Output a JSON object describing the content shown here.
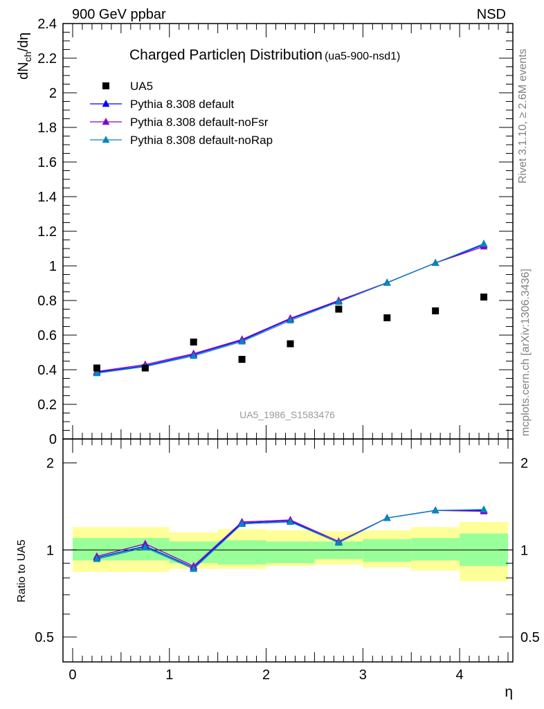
{
  "header": {
    "left": "900 GeV ppbar",
    "right": "NSD"
  },
  "side_text": {
    "upper": "Rivet 3.1.10, ≥ 2.6M events",
    "lower": "mcplots.cern.ch [arXiv:1306.3436]"
  },
  "chart_data": [
    {
      "type": "scatter",
      "title": "Charged Particleη Distribution",
      "subtitle": "(ua5-900-nsd1)",
      "ylabel": "dN_ch/dη",
      "ylabel_parts": {
        "main": "dN",
        "sub": "ch",
        "tail": "/dη"
      },
      "watermark": "UA5_1986_S1583476",
      "xlim": [
        -0.1,
        4.55
      ],
      "ylim": [
        0,
        2.4
      ],
      "yticks": [
        0,
        0.2,
        0.4,
        0.6,
        0.8,
        1,
        1.2,
        1.4,
        1.6,
        1.8,
        2,
        2.2,
        2.4
      ],
      "ytick_labels": [
        "0",
        "0.2",
        "0.4",
        "0.6",
        "0.8",
        "1",
        "1.2",
        "1.4",
        "1.6",
        "1.8",
        "2",
        "2.2",
        "2.4"
      ],
      "legend_position": "top-left",
      "data_series": {
        "name": "UA5",
        "x": [
          0.25,
          0.75,
          1.25,
          1.75,
          2.25,
          2.75,
          3.25,
          3.75,
          4.25
        ],
        "y": [
          0.41,
          0.41,
          0.56,
          0.46,
          0.55,
          0.75,
          0.7,
          0.74,
          0.82
        ],
        "color": "#000000"
      },
      "series": [
        {
          "name": "Pythia 8.308 default",
          "x": [
            0.25,
            0.75,
            1.25,
            1.75,
            2.25,
            2.75,
            3.25,
            3.75,
            4.25
          ],
          "y": [
            0.385,
            0.423,
            0.487,
            0.57,
            0.693,
            0.797,
            0.903,
            1.017,
            1.122
          ],
          "color": "#0000ff"
        },
        {
          "name": "Pythia 8.308 default-noFsr",
          "x": [
            0.25,
            0.75,
            1.25,
            1.75,
            2.25,
            2.75,
            3.25,
            3.75,
            4.25
          ],
          "y": [
            0.39,
            0.43,
            0.493,
            0.575,
            0.697,
            0.8,
            0.903,
            1.017,
            1.112
          ],
          "color": "#8800cc"
        },
        {
          "name": "Pythia 8.308 default-noRap",
          "x": [
            0.25,
            0.75,
            1.25,
            1.75,
            2.25,
            2.75,
            3.25,
            3.75,
            4.25
          ],
          "y": [
            0.38,
            0.418,
            0.48,
            0.563,
            0.685,
            0.792,
            0.902,
            1.017,
            1.128
          ],
          "color": "#0088bb"
        }
      ]
    },
    {
      "type": "line",
      "ylabel": "Ratio to UA5",
      "xlabel": "η",
      "xlim": [
        -0.1,
        4.55
      ],
      "ylim": [
        0.41,
        2.42
      ],
      "log_y": true,
      "xticks": [
        0,
        1,
        2,
        3,
        4
      ],
      "xtick_labels": [
        "0",
        "1",
        "2",
        "3",
        "4"
      ],
      "yticks_labeled": [
        0.5,
        1,
        2
      ],
      "ytick_labels": [
        "0.5",
        "1",
        "2"
      ],
      "reference": 1,
      "bands": {
        "bin_edges": [
          0,
          1,
          1.5,
          2,
          2.5,
          3,
          3.5,
          4,
          4.5
        ],
        "green": [
          [
            0.92,
            1.1
          ],
          [
            0.9,
            1.07
          ],
          [
            0.89,
            1.08
          ],
          [
            0.9,
            1.07
          ],
          [
            0.93,
            1.07
          ],
          [
            0.91,
            1.09
          ],
          [
            0.92,
            1.1
          ],
          [
            0.88,
            1.14
          ]
        ],
        "yellow": [
          [
            0.84,
            1.2
          ],
          [
            0.86,
            1.15
          ],
          [
            0.86,
            1.18
          ],
          [
            0.88,
            1.17
          ],
          [
            0.89,
            1.16
          ],
          [
            0.87,
            1.17
          ],
          [
            0.85,
            1.2
          ],
          [
            0.78,
            1.25
          ]
        ],
        "green_color": "#99ff99",
        "yellow_color": "#ffff99"
      },
      "series": [
        {
          "name": "Pythia 8.308 default",
          "x": [
            0.25,
            0.75,
            1.25,
            1.75,
            2.25,
            2.75,
            3.25,
            3.75,
            4.25
          ],
          "y": [
            0.94,
            1.03,
            0.87,
            1.24,
            1.26,
            1.06,
            1.29,
            1.37,
            1.37
          ],
          "color": "#0000ff"
        },
        {
          "name": "Pythia 8.308 default-noFsr",
          "x": [
            0.25,
            0.75,
            1.25,
            1.75,
            2.25,
            2.75,
            3.25,
            3.75,
            4.25
          ],
          "y": [
            0.95,
            1.05,
            0.88,
            1.25,
            1.27,
            1.07,
            1.29,
            1.37,
            1.36
          ],
          "color": "#8800cc"
        },
        {
          "name": "Pythia 8.308 default-noRap",
          "x": [
            0.25,
            0.75,
            1.25,
            1.75,
            2.25,
            2.75,
            3.25,
            3.75,
            4.25
          ],
          "y": [
            0.93,
            1.02,
            0.86,
            1.23,
            1.25,
            1.06,
            1.29,
            1.37,
            1.38
          ],
          "color": "#0088bb"
        }
      ]
    }
  ]
}
